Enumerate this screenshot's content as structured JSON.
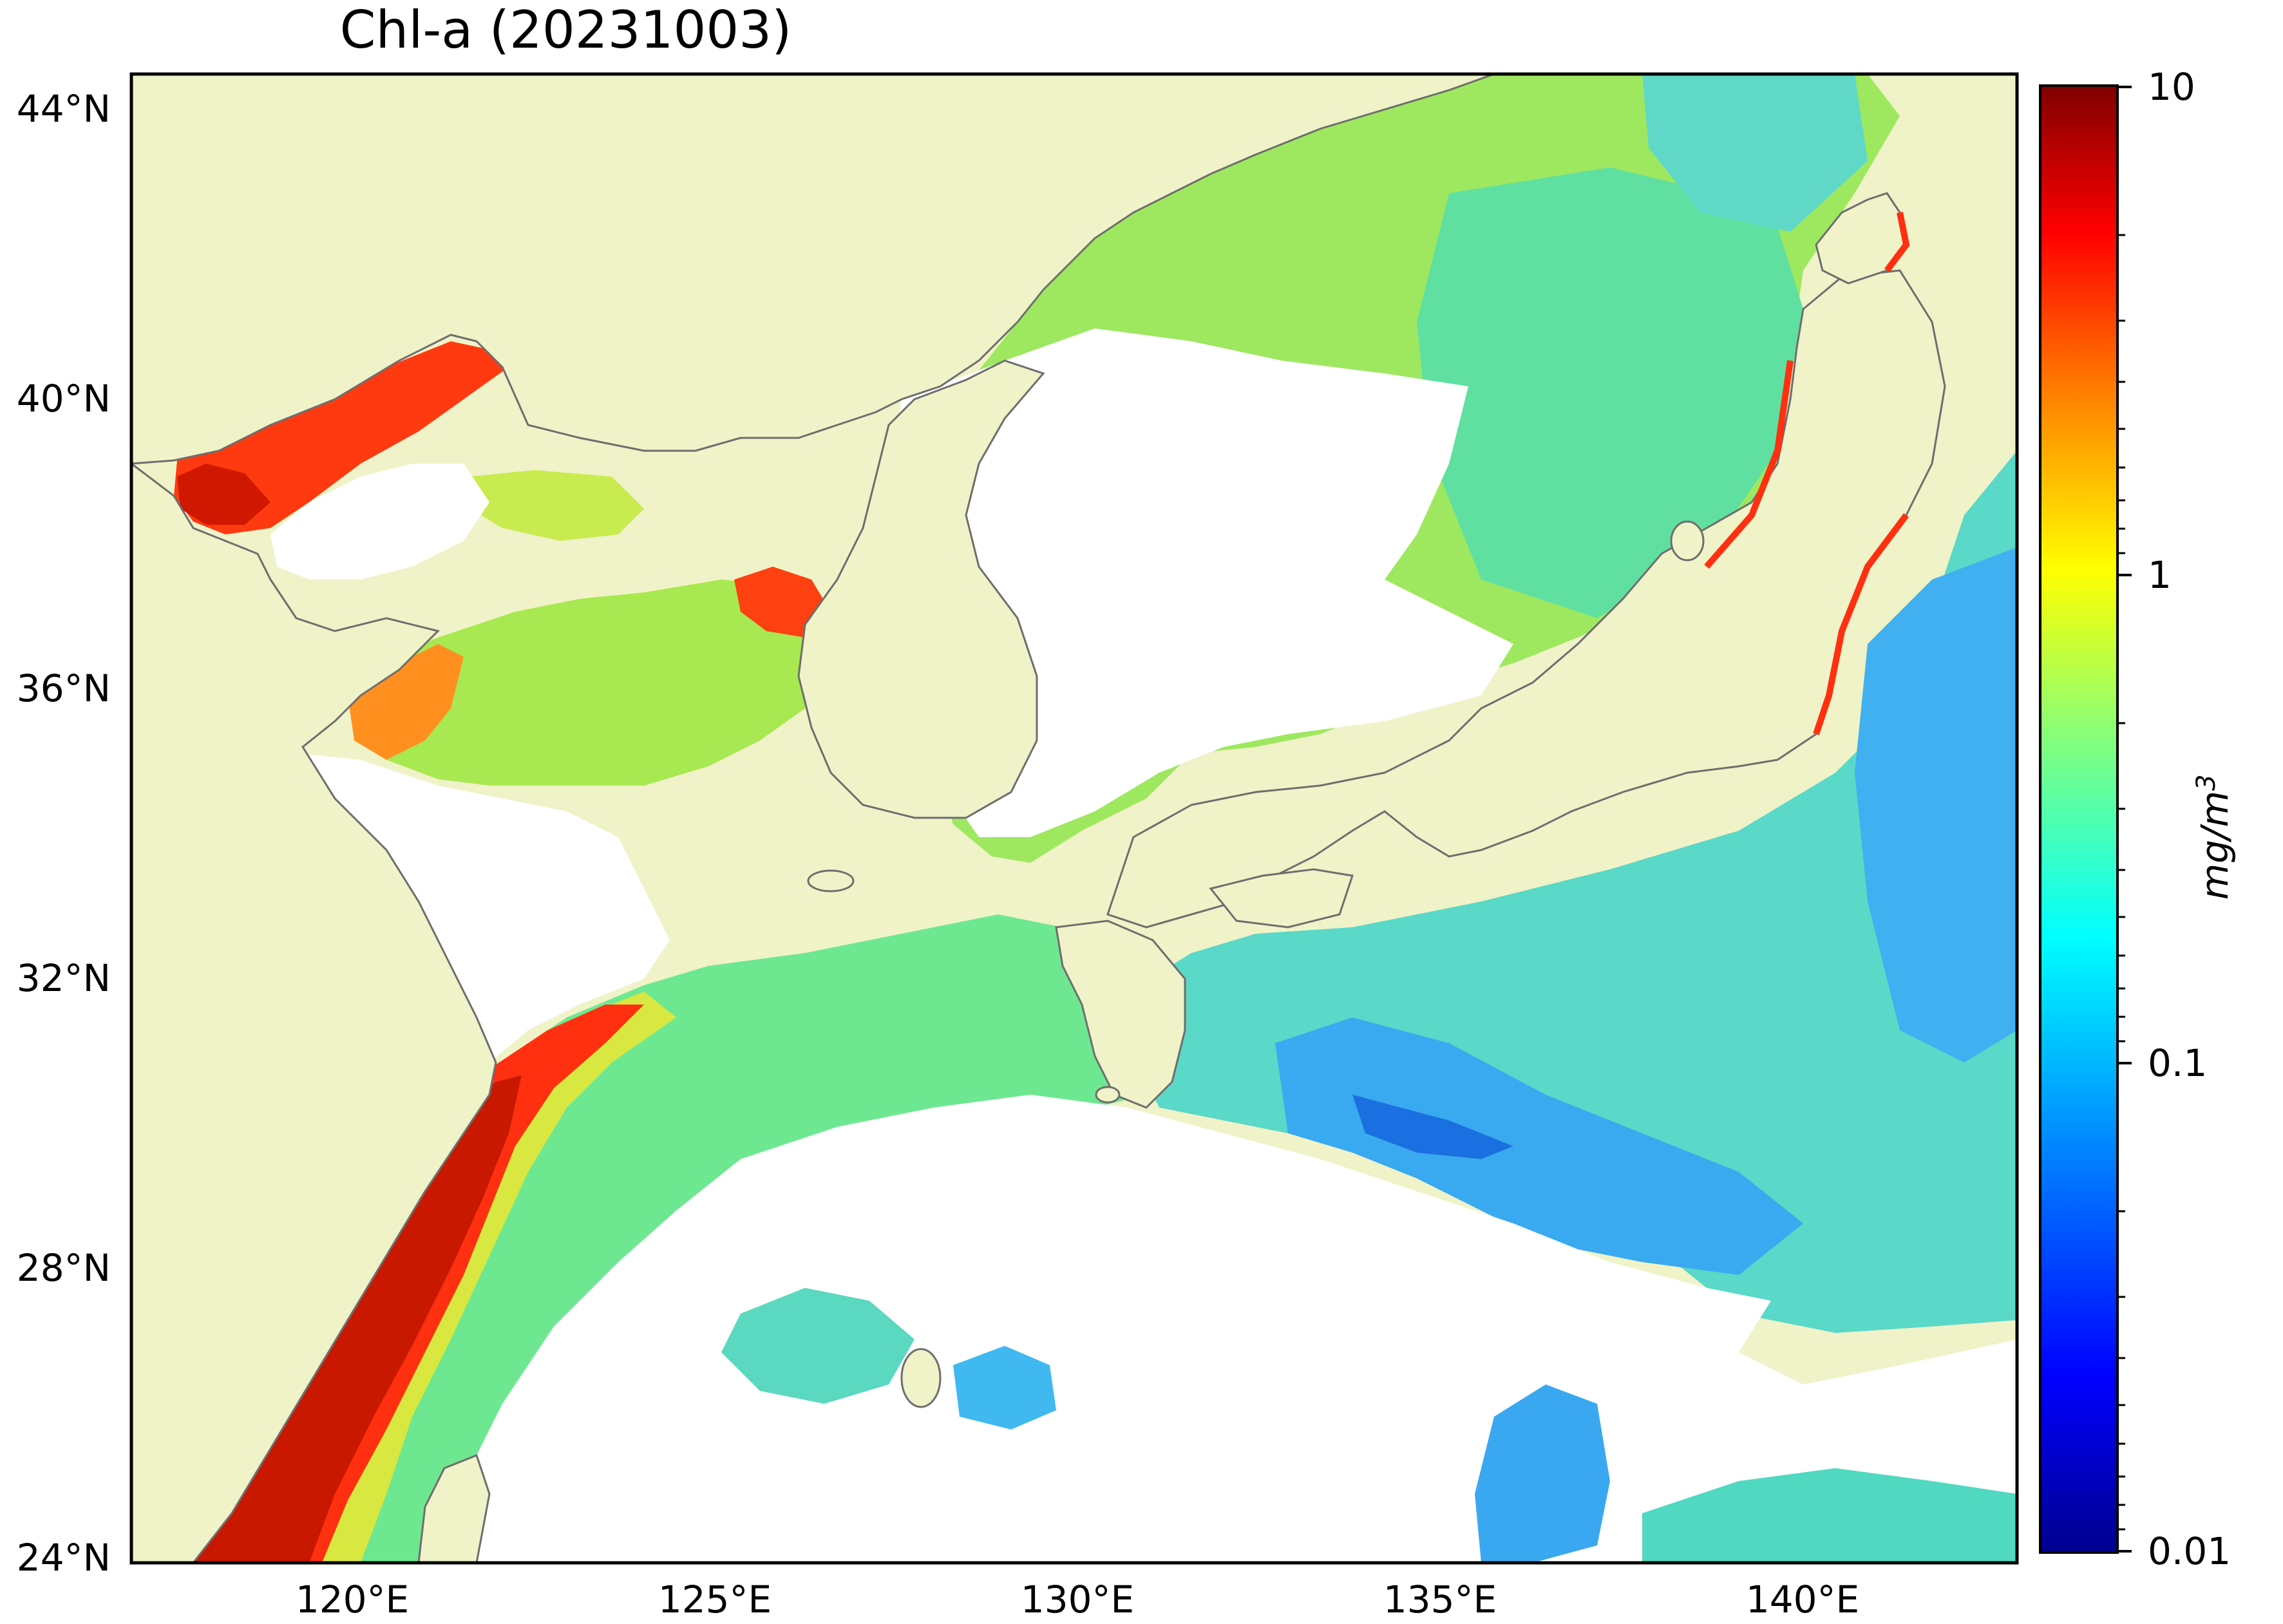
{
  "title": "Chl-a (20231003)",
  "lat_labels": [
    "44°N",
    "40°N",
    "36°N",
    "32°N",
    "28°N",
    "24°N"
  ],
  "lon_labels": [
    "120°E",
    "125°E",
    "130°E",
    "135°E",
    "140°E"
  ],
  "colorbar": {
    "ticks": [
      "10",
      "1",
      "0.1",
      "0.01"
    ],
    "label_base": "mg/m",
    "label_exp": "3",
    "scale": "log",
    "range": [
      0.01,
      10
    ],
    "colormap": [
      "#00008f",
      "#0000ff",
      "#0080ff",
      "#00ffff",
      "#80ff80",
      "#ffff00",
      "#ff8000",
      "#ff0000",
      "#800000"
    ]
  },
  "map": {
    "lon_range": [
      117,
      143
    ],
    "lat_range": [
      24,
      44.5
    ],
    "colors": {
      "land": "#f0f2c8",
      "coast": "#6e6e6e",
      "no_data": "#ffffff"
    }
  }
}
